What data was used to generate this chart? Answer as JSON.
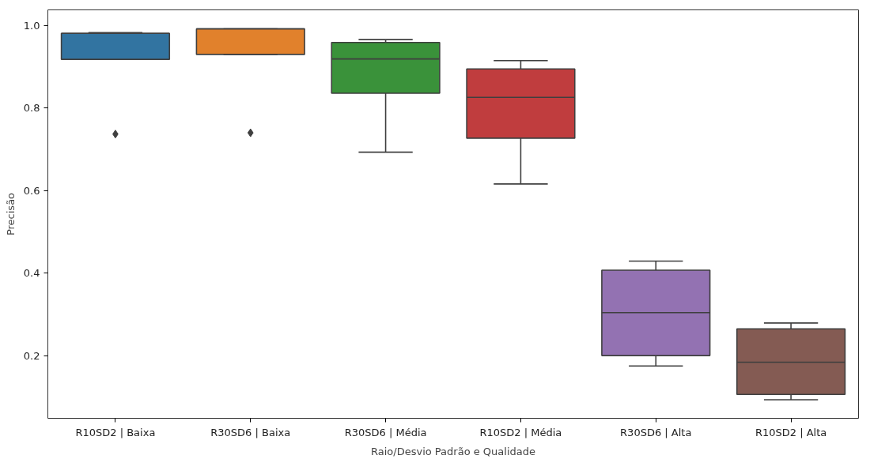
{
  "chart_data": {
    "type": "box",
    "xlabel": "Raio/Desvio Padrão e Qualidade",
    "ylabel": "Precisão",
    "categories": [
      "R10SD2 | Baixa",
      "R30SD6 | Baixa",
      "R30SD6 | Média",
      "R10SD2 | Média",
      "R30SD6 | Alta",
      "R10SD2 | Alta"
    ],
    "colors": [
      "#3274a1",
      "#e1812c",
      "#3a923a",
      "#c03d3e",
      "#9372b2",
      "#845b53"
    ],
    "boxes": [
      {
        "low": 0.918,
        "q1": 0.918,
        "median": 0.981,
        "q3": 0.981,
        "high": 0.983,
        "outliers": [
          0.737
        ]
      },
      {
        "low": 0.93,
        "q1": 0.93,
        "median": 0.992,
        "q3": 0.992,
        "high": 0.992,
        "outliers": [
          0.74
        ]
      },
      {
        "low": 0.693,
        "q1": 0.836,
        "median": 0.919,
        "q3": 0.959,
        "high": 0.966
      },
      {
        "low": 0.616,
        "q1": 0.727,
        "median": 0.826,
        "q3": 0.895,
        "high": 0.915
      },
      {
        "low": 0.175,
        "q1": 0.2,
        "median": 0.304,
        "q3": 0.407,
        "high": 0.429
      },
      {
        "low": 0.093,
        "q1": 0.106,
        "median": 0.184,
        "q3": 0.265,
        "high": 0.279
      }
    ],
    "ylim": [
      0.048,
      1.038
    ],
    "yticks": [
      0.2,
      0.4,
      0.6,
      0.8,
      {
        "value": 1,
        "label": "1.0"
      }
    ],
    "grid": false,
    "marker": "diamond"
  }
}
